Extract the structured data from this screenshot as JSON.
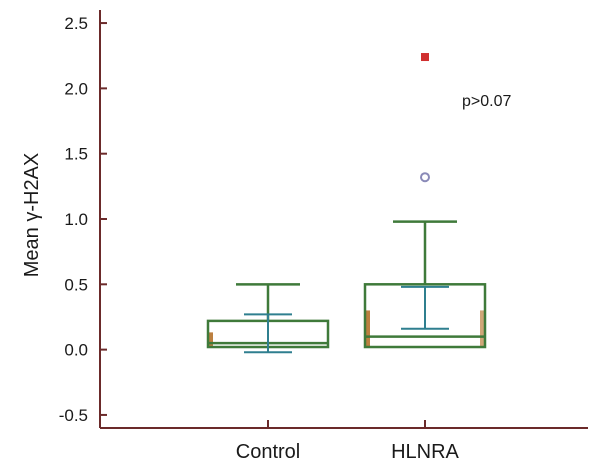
{
  "chart_data": {
    "type": "box",
    "ylabel": "Mean γ-H2AX",
    "ylim": [
      -0.6,
      2.6
    ],
    "yticks": [
      -0.5,
      0.0,
      0.5,
      1.0,
      1.5,
      2.0,
      2.5
    ],
    "ytick_labels": [
      "-0.5",
      "0.0",
      "0.5",
      "1.0",
      "1.5",
      "2.0",
      "2.5"
    ],
    "categories": [
      "Control",
      "HLNRA"
    ],
    "annotation": "p>0.07",
    "grid": false,
    "boxes": [
      {
        "category": "Control",
        "q1": 0.02,
        "median": 0.05,
        "q3": 0.22,
        "whisker_low": 0.0,
        "whisker_high": 0.5,
        "mean": 0.12,
        "mean_ci_low": -0.02,
        "mean_ci_high": 0.27,
        "outliers": []
      },
      {
        "category": "HLNRA",
        "q1": 0.02,
        "median": 0.1,
        "q3": 0.5,
        "whisker_low": 0.0,
        "whisker_high": 0.98,
        "mean": 0.47,
        "mean_ci_low": 0.16,
        "mean_ci_high": 0.48,
        "outliers": [
          {
            "value": 1.32,
            "kind": "outlier"
          },
          {
            "value": 2.24,
            "kind": "extreme"
          }
        ]
      }
    ],
    "colors": {
      "axis": "#6b2a2a",
      "box": "#3f7a3a",
      "mean_line": "#2f7f8f",
      "box_shadow": "#b06a1e",
      "outlier": "#8a8ab8",
      "extreme": "#d03030"
    }
  }
}
